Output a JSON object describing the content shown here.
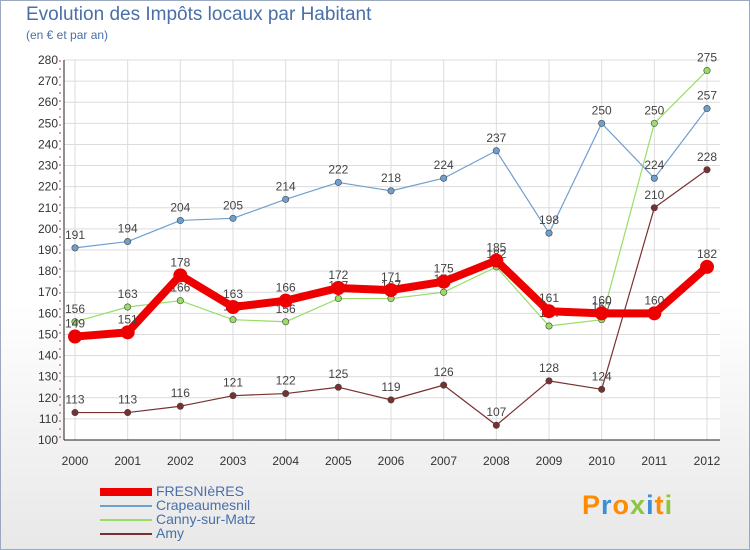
{
  "chart_data": {
    "type": "line",
    "title": "Evolution des Impôts locaux par Habitant",
    "subtitle": "(en € et par an)",
    "x": [
      "2000",
      "2001",
      "2002",
      "2003",
      "2004",
      "2005",
      "2006",
      "2007",
      "2008",
      "2009",
      "2010",
      "2011",
      "2012"
    ],
    "ylim": [
      100,
      280
    ],
    "yticks": [
      "100",
      "110",
      "120",
      "130",
      "140",
      "150",
      "160",
      "170",
      "180",
      "190",
      "200",
      "210",
      "220",
      "230",
      "240",
      "250",
      "260",
      "270",
      "280"
    ],
    "series": [
      {
        "name": "FRESNIèRES",
        "color": "#ee0000",
        "values": [
          149,
          151,
          178,
          163,
          166,
          172,
          171,
          175,
          185,
          161,
          160,
          160,
          182
        ]
      },
      {
        "name": "Crapeaumesnil",
        "color": "#6f9fcf",
        "values": [
          191,
          194,
          204,
          205,
          214,
          222,
          218,
          224,
          237,
          198,
          250,
          224,
          257
        ]
      },
      {
        "name": "Canny-sur-Matz",
        "color": "#99dd66",
        "values": [
          156,
          163,
          166,
          157,
          156,
          167,
          167,
          170,
          182,
          154,
          157,
          250,
          275
        ]
      },
      {
        "name": "Amy",
        "color": "#7a3030",
        "values": [
          113,
          113,
          116,
          121,
          122,
          125,
          119,
          126,
          107,
          128,
          124,
          210,
          228
        ]
      }
    ],
    "legend_position": "bottom-left"
  },
  "logo": {
    "letters": [
      "P",
      "r",
      "o",
      "x",
      "i",
      "t",
      "i"
    ],
    "colors": [
      "#ff8c00",
      "#3b8fd6",
      "#ff8c00",
      "#8cc63f",
      "#3b8fd6",
      "#ff8c00",
      "#8cc63f"
    ]
  }
}
